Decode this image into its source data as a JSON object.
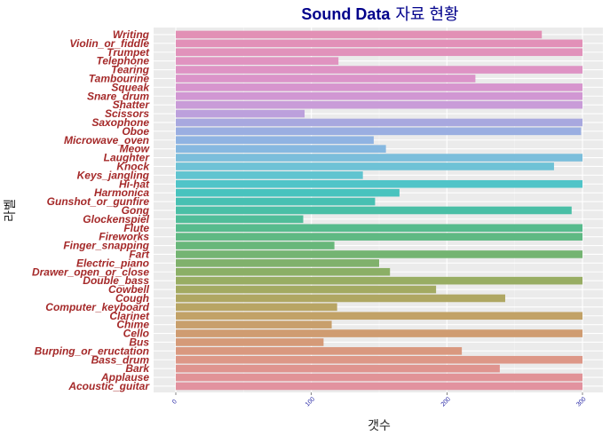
{
  "chart_data": {
    "type": "bar",
    "orientation": "horizontal",
    "title_part1": "Sound Data",
    "title_part2": "자료 현황",
    "xlabel": "갯수",
    "ylabel": "라벨",
    "xlim": [
      0,
      300
    ],
    "xticks": [
      0,
      100,
      200,
      300
    ],
    "xtick_labels": [
      "0",
      "100",
      "200",
      "300"
    ],
    "grid": true,
    "categories": [
      "Writing",
      "Violin_or_fiddle",
      "Trumpet",
      "Telephone",
      "Tearing",
      "Tambourine",
      "Squeak",
      "Snare_drum",
      "Shatter",
      "Scissors",
      "Saxophone",
      "Oboe",
      "Microwave_oven",
      "Meow",
      "Laughter",
      "Knock",
      "Keys_jangling",
      "Hi-hat",
      "Harmonica",
      "Gunshot_or_gunfire",
      "Gong",
      "Glockenspiel",
      "Flute",
      "Fireworks",
      "Finger_snapping",
      "Fart",
      "Electric_piano",
      "Drawer_open_or_close",
      "Double_bass",
      "Cowbell",
      "Cough",
      "Computer_keyboard",
      "Clarinet",
      "Chime",
      "Cello",
      "Bus",
      "Burping_or_eructation",
      "Bass_drum",
      "Bark",
      "Applause",
      "Acoustic_guitar"
    ],
    "values": [
      270,
      300,
      300,
      120,
      300,
      221,
      300,
      300,
      300,
      95,
      300,
      299,
      146,
      155,
      300,
      279,
      138,
      300,
      165,
      147,
      292,
      94,
      300,
      300,
      117,
      300,
      150,
      158,
      300,
      192,
      243,
      119,
      300,
      115,
      300,
      109,
      211,
      300,
      239,
      300,
      300
    ],
    "colors": [
      "#e290b5",
      "#e290b8",
      "#e192bb",
      "#e093c0",
      "#de93c4",
      "#db94c9",
      "#d795ce",
      "#d197d3",
      "#c99cd8",
      "#bca0dc",
      "#a8a8df",
      "#9aaee1",
      "#8fb3e2",
      "#86b8e0",
      "#7bbedb",
      "#6ec2d6",
      "#60c4d0",
      "#50c4c8",
      "#48c3be",
      "#47c0b2",
      "#4abfa6",
      "#50bd99",
      "#57bb8d",
      "#5fb983",
      "#68b77a",
      "#74b472",
      "#80b16c",
      "#8baf66",
      "#98ad63",
      "#a3aa62",
      "#afa763",
      "#b8a564",
      "#c2a267",
      "#c89f6c",
      "#cf9c71",
      "#d59a78",
      "#d9987f",
      "#dd9787",
      "#df948f",
      "#e19397",
      "#e2929f"
    ]
  }
}
